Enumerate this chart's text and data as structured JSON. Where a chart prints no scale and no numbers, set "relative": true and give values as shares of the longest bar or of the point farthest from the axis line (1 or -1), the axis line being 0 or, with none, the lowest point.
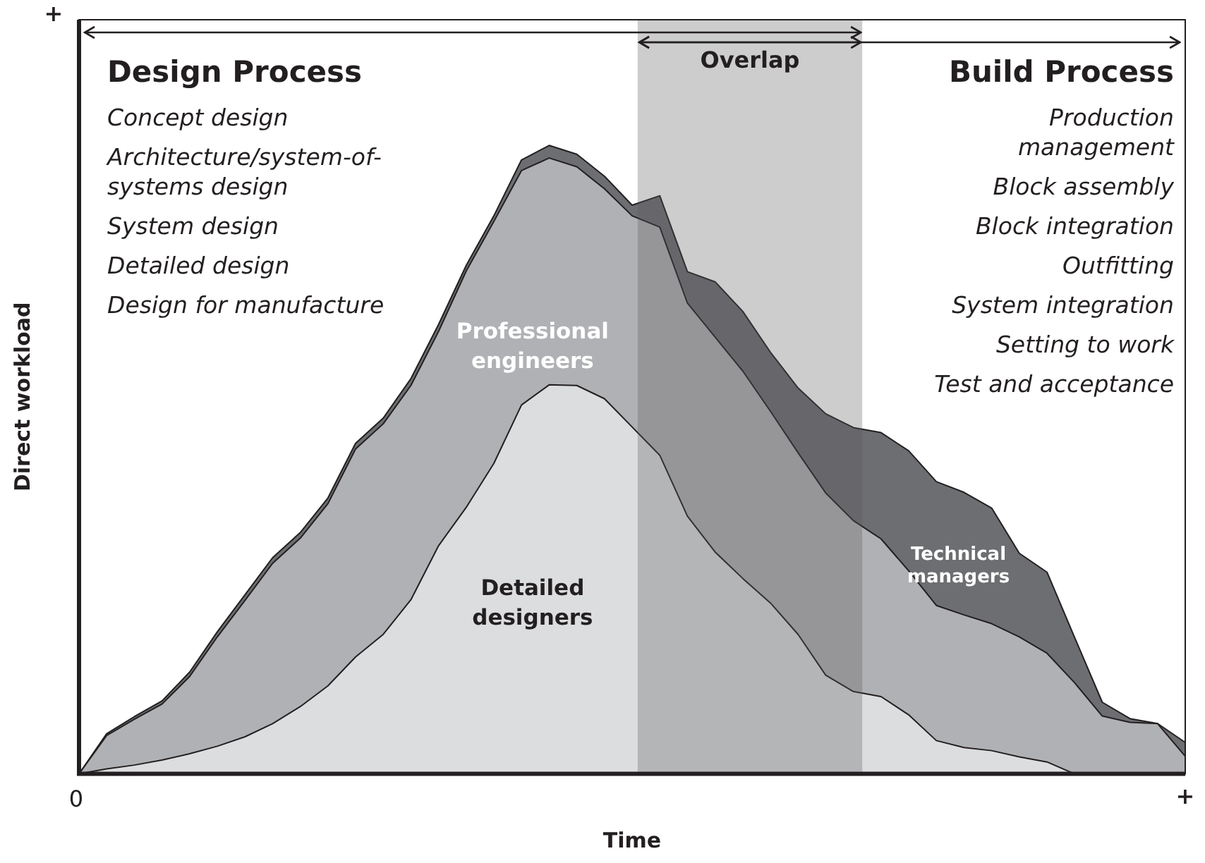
{
  "chart_data": {
    "type": "area",
    "stacked": true,
    "relative": true,
    "xlabel": "Time",
    "ylabel": "Direct workload",
    "categories": [
      null,
      null,
      null,
      null,
      null,
      null,
      null,
      null,
      null,
      null,
      null,
      null,
      null,
      null,
      null,
      null,
      null,
      null,
      null,
      null,
      null,
      null,
      null,
      null,
      null,
      null,
      null,
      null,
      null,
      null,
      null,
      null,
      null,
      null,
      null,
      null,
      null,
      null,
      null,
      null,
      null
    ],
    "series": [
      {
        "name": "Detailed designers",
        "color": "#dcdddf",
        "values": [
          0,
          0.008,
          0.014,
          0.022,
          0.032,
          0.044,
          0.059,
          0.08,
          0.107,
          0.14,
          0.186,
          0.222,
          0.277,
          0.363,
          0.424,
          0.494,
          0.587,
          0.619,
          0.618,
          0.597,
          0.552,
          0.507,
          0.41,
          0.353,
          0.311,
          0.272,
          0.222,
          0.157,
          0.131,
          0.123,
          0.094,
          0.053,
          0.042,
          0.037,
          0.027,
          0.019,
          0,
          0,
          0,
          0,
          0
        ]
      },
      {
        "name": "Professional engineers",
        "color": "#b0b1b4",
        "values": [
          0,
          0.053,
          0.073,
          0.089,
          0.123,
          0.174,
          0.217,
          0.255,
          0.268,
          0.29,
          0.331,
          0.335,
          0.341,
          0.341,
          0.376,
          0.385,
          0.373,
          0.361,
          0.348,
          0.334,
          0.336,
          0.363,
          0.339,
          0.342,
          0.33,
          0.305,
          0.289,
          0.29,
          0.272,
          0.251,
          0.229,
          0.215,
          0.211,
          0.202,
          0.191,
          0.173,
          0.145,
          0.092,
          0.082,
          0.08,
          0.028
        ]
      },
      {
        "name": "Technical managers",
        "color": "#6d6e71",
        "values": [
          0,
          0.003,
          0.004,
          0.005,
          0.007,
          0.008,
          0.009,
          0.009,
          0.009,
          0.009,
          0.009,
          0.009,
          0.011,
          0.011,
          0.009,
          0.009,
          0.017,
          0.02,
          0.02,
          0.02,
          0.017,
          0.05,
          0.05,
          0.088,
          0.095,
          0.094,
          0.103,
          0.126,
          0.148,
          0.169,
          0.191,
          0.197,
          0.195,
          0.184,
          0.133,
          0.129,
          0.072,
          0.022,
          0.006,
          0,
          0.022
        ]
      }
    ],
    "annotations": [
      "+",
      "0",
      "+",
      "Overlap",
      "Design Process",
      "Concept design",
      "Architecture/system-of-systems design",
      "System design",
      "Detailed design",
      "Design for manufacture",
      "Build Process",
      "Production management",
      "Block assembly",
      "Block integration",
      "Outfitting",
      "System integration",
      "Setting to work",
      "Test and acceptance"
    ],
    "legend": false,
    "grid": false
  }
}
